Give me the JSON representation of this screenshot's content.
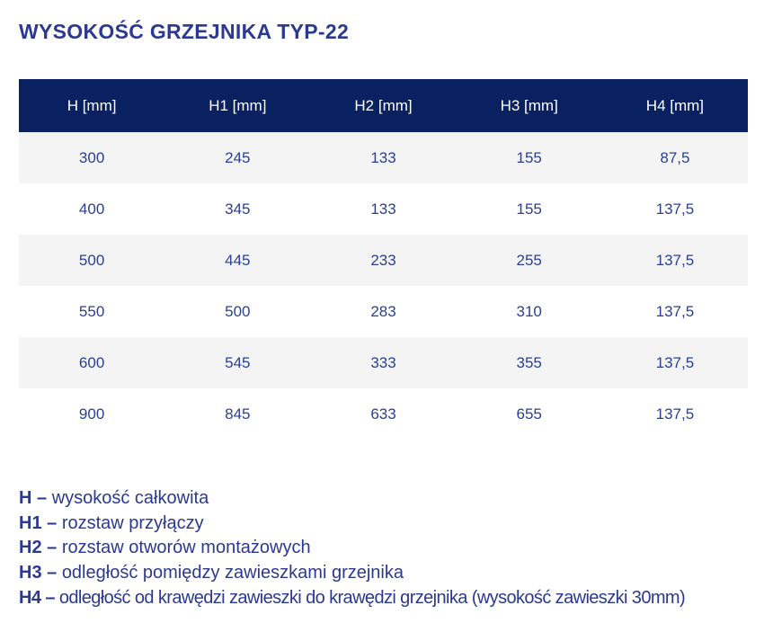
{
  "title": "WYSOKOŚĆ GRZEJNIKA TYP-22",
  "colors": {
    "header_bg": "#0a2161",
    "row_alt_bg": "#f4f4f5",
    "heading_text": "#2b3990",
    "cell_text": "#2b4094",
    "header_text": "#ffffff"
  },
  "table": {
    "headers": [
      "H [mm]",
      "H1 [mm]",
      "H2 [mm]",
      "H3 [mm]",
      "H4 [mm]"
    ],
    "rows": [
      [
        "300",
        "245",
        "133",
        "155",
        "87,5"
      ],
      [
        "400",
        "345",
        "133",
        "155",
        "137,5"
      ],
      [
        "500",
        "445",
        "233",
        "255",
        "137,5"
      ],
      [
        "550",
        "500",
        "283",
        "310",
        "137,5"
      ],
      [
        "600",
        "545",
        "333",
        "355",
        "137,5"
      ],
      [
        "900",
        "845",
        "633",
        "655",
        "137,5"
      ]
    ]
  },
  "legend": [
    {
      "term": "H –",
      "description": "wysokość całkowita"
    },
    {
      "term": "H1 –",
      "description": "rozstaw przyłączy"
    },
    {
      "term": "H2 –",
      "description": "rozstaw otworów montażowych"
    },
    {
      "term": "H3 –",
      "description": "odległość pomiędzy zawieszkami grzejnika"
    },
    {
      "term": "H4 –",
      "description": "odległość od krawędzi zawieszki do krawędzi grzejnika (wysokość zawieszki 30mm)"
    }
  ]
}
